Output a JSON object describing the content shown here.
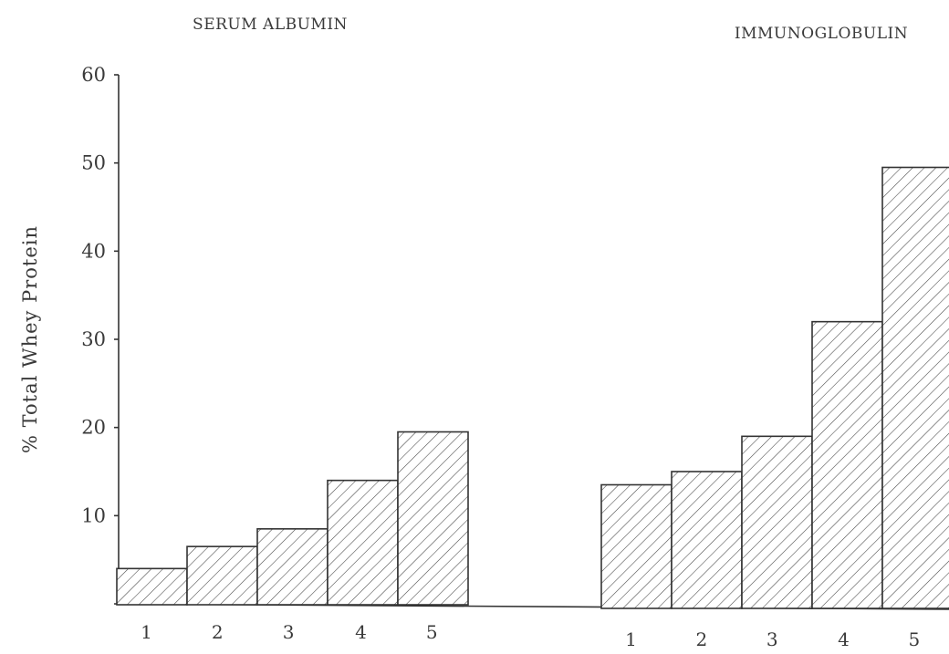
{
  "chart_data": {
    "type": "bar",
    "ylabel": "% Total Whey Protein",
    "ylim": [
      0,
      60
    ],
    "yticks": [
      10,
      20,
      30,
      40,
      50,
      60
    ],
    "grid": false,
    "pattern": "diagonal hatch",
    "groups": [
      {
        "title": "SERUM ALBUMIN",
        "categories": [
          "1",
          "2",
          "3",
          "4",
          "5"
        ],
        "values": [
          4,
          6.5,
          8.5,
          14,
          19.5
        ]
      },
      {
        "title": "IMMUNOGLOBULIN",
        "categories": [
          "1",
          "2",
          "3",
          "4",
          "5"
        ],
        "values": [
          13.5,
          15,
          19,
          32,
          49.5
        ]
      }
    ]
  }
}
